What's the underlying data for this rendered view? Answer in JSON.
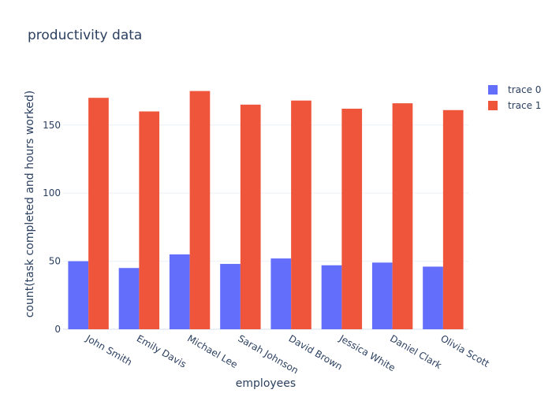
{
  "chart_data": {
    "type": "bar",
    "title": "productivity data",
    "xlabel": "employees",
    "ylabel": "count(task completed and hours worked)",
    "categories": [
      "John Smith",
      "Emily Davis",
      "Michael Lee",
      "Sarah Johnson",
      "David Brown",
      "Jessica White",
      "Daniel Clark",
      "Olivia Scott"
    ],
    "series": [
      {
        "name": "trace 0",
        "color": "#636efa",
        "values": [
          50,
          45,
          55,
          48,
          52,
          47,
          49,
          46
        ]
      },
      {
        "name": "trace 1",
        "color": "#ef553b",
        "values": [
          170,
          160,
          175,
          165,
          168,
          162,
          166,
          161
        ]
      }
    ],
    "ylim": [
      0,
      184
    ],
    "yticks": [
      0,
      50,
      100,
      150
    ],
    "grid": true,
    "legend": "top-right"
  }
}
